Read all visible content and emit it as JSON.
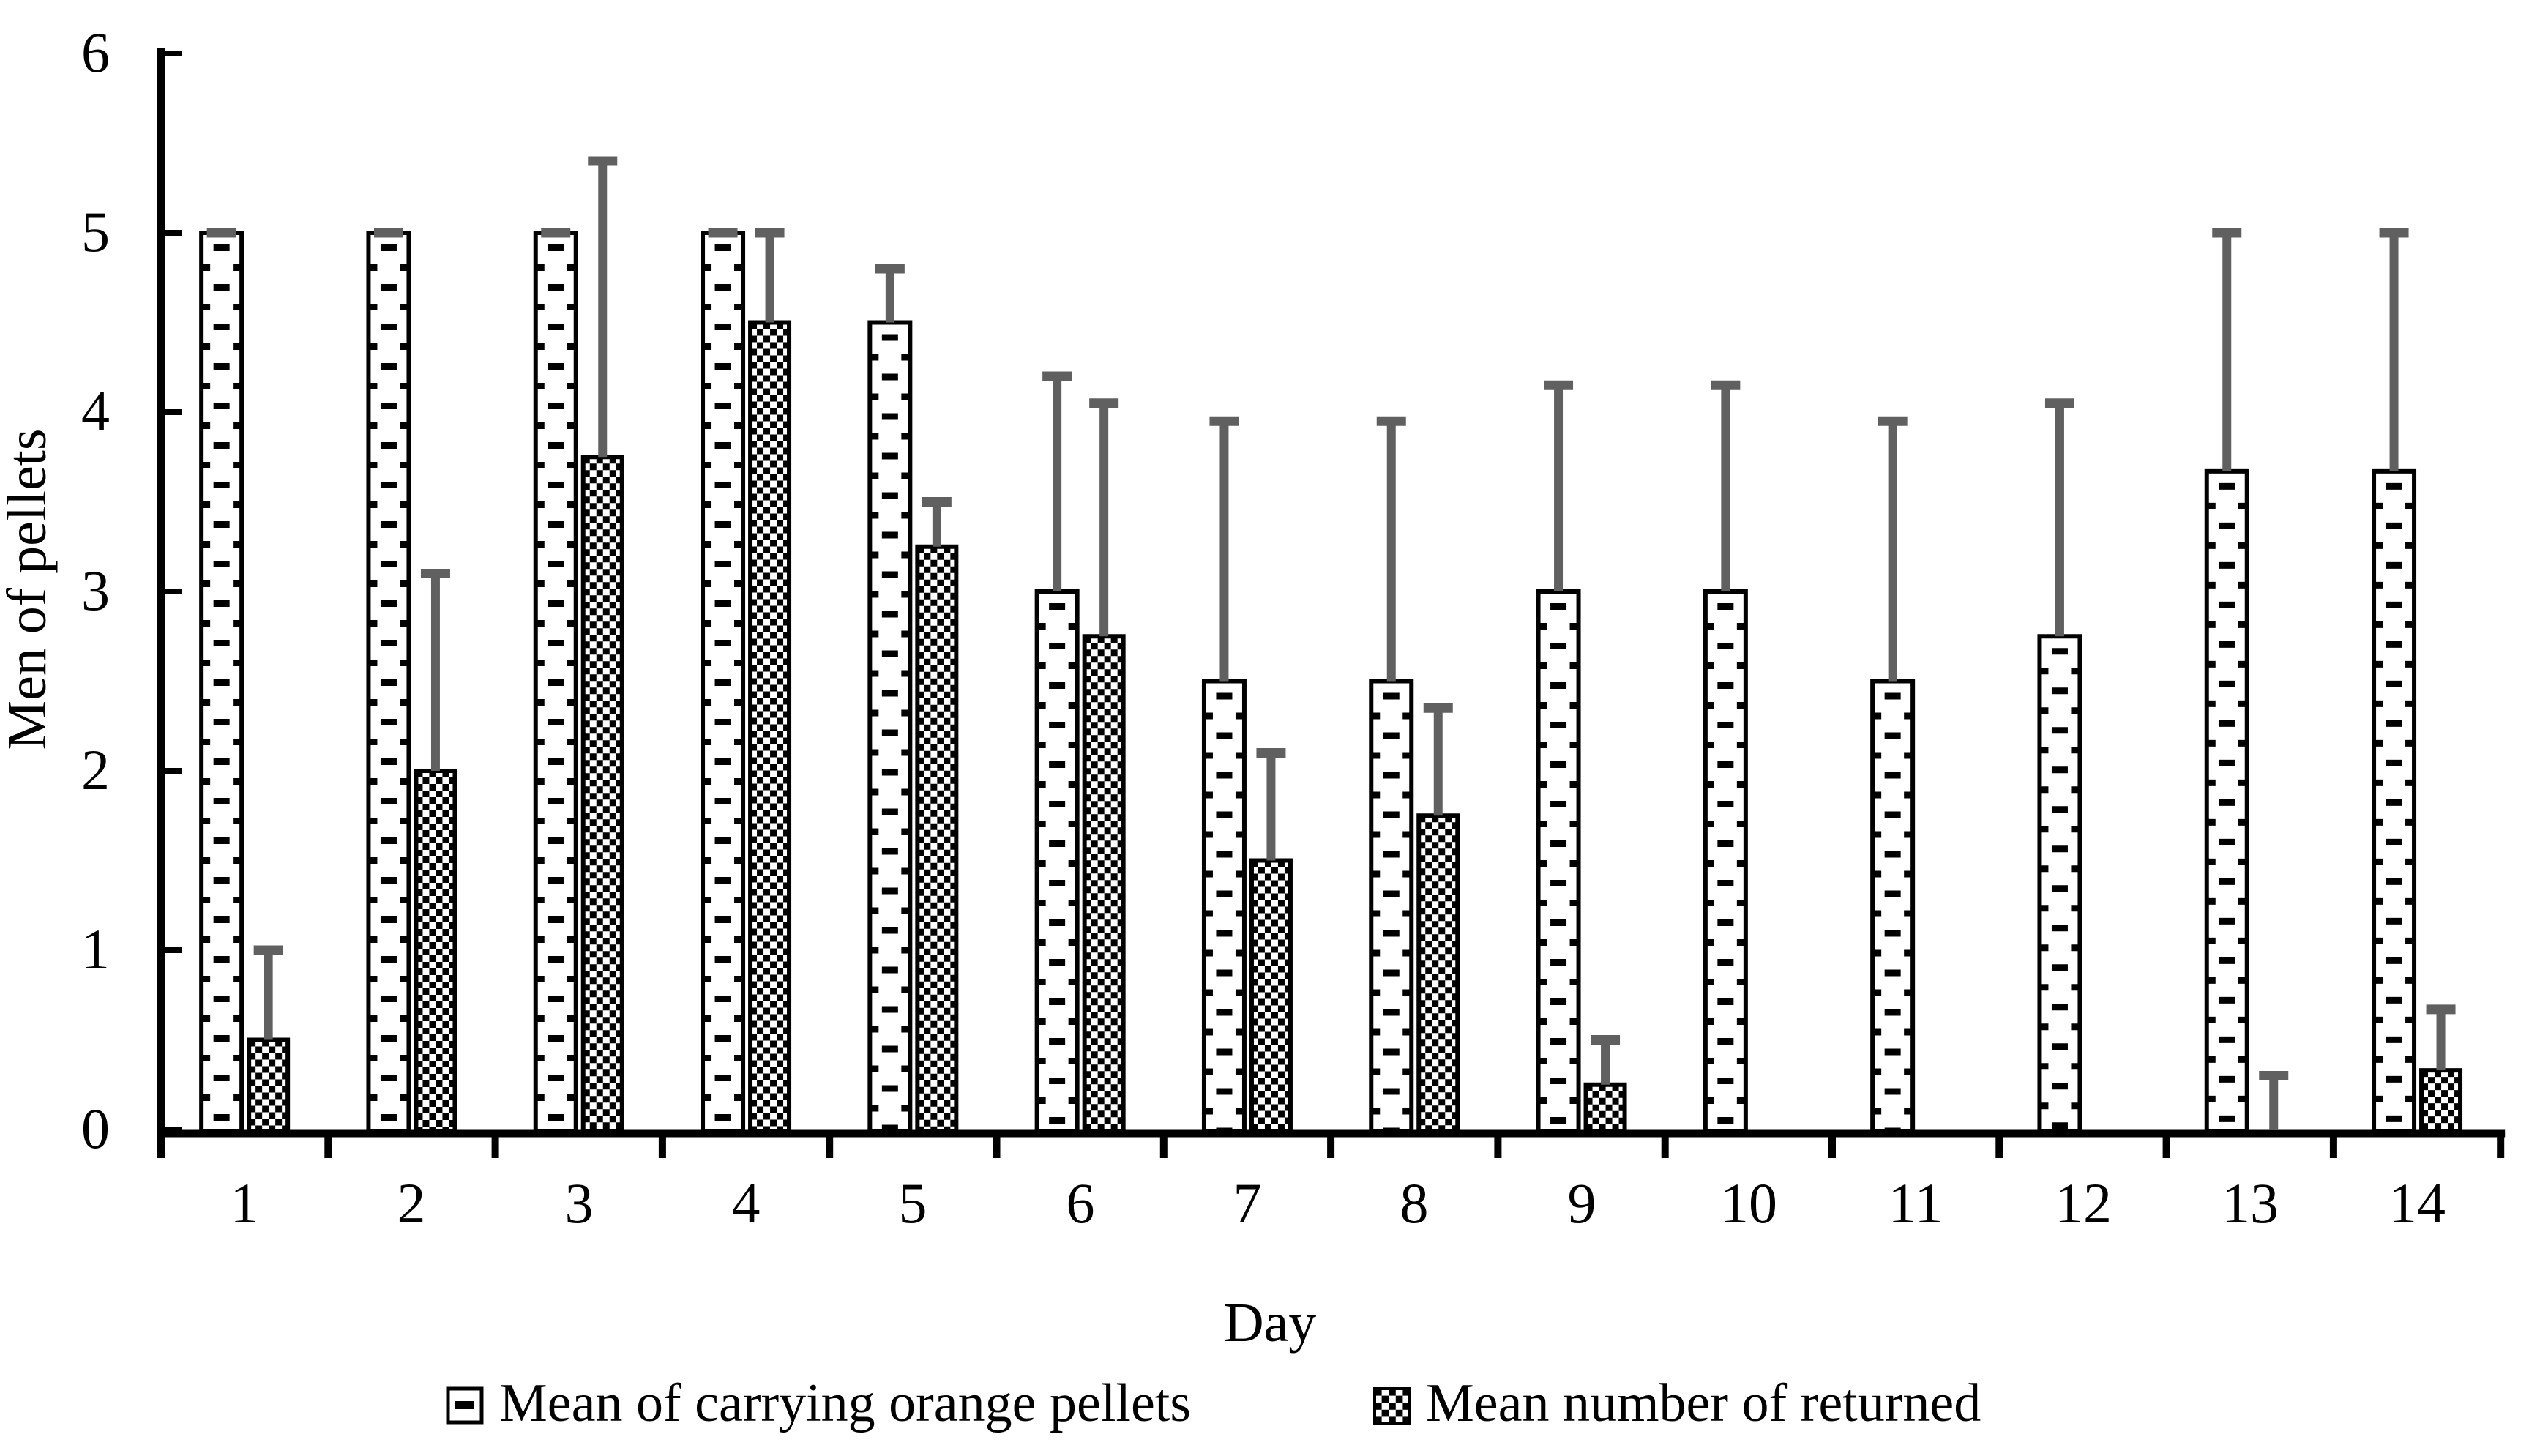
{
  "figure": {
    "background": "#ffffff",
    "text_color": "#000000",
    "bar_outline_color": "#000000",
    "error_bar_color": "#606060"
  },
  "chart_data": {
    "type": "bar",
    "title": "",
    "xlabel": "Day",
    "ylabel": "Men of pellets",
    "categories": [
      "1",
      "2",
      "3",
      "4",
      "5",
      "6",
      "7",
      "8",
      "9",
      "10",
      "11",
      "12",
      "13",
      "14"
    ],
    "ylim": [
      0,
      6
    ],
    "yticks": [
      0,
      1,
      2,
      3,
      4,
      5,
      6
    ],
    "ytick_labels": [
      "0",
      "1",
      "2",
      "3",
      "4",
      "5",
      "6"
    ],
    "grid": false,
    "legend_position": "bottom",
    "series": [
      {
        "name": "Mean of carrying orange pellets",
        "pattern": "horizontal-dash",
        "values": [
          5,
          5,
          5,
          5,
          4.5,
          3,
          2.5,
          2.5,
          3,
          3,
          2.5,
          2.75,
          3.67,
          3.67
        ],
        "error_top": [
          5,
          5,
          5,
          5,
          4.8,
          4.2,
          3.95,
          3.95,
          4.15,
          4.15,
          3.95,
          4.05,
          5,
          5
        ]
      },
      {
        "name": "Mean number of returned",
        "pattern": "checkerboard",
        "values": [
          0.5,
          2,
          3.75,
          4.5,
          3.25,
          2.75,
          1.5,
          1.75,
          0.25,
          0,
          0,
          0,
          0,
          0.33
        ],
        "error_top": [
          1.0,
          3.1,
          5.4,
          5.0,
          3.5,
          4.05,
          2.1,
          2.35,
          0.5,
          null,
          null,
          null,
          0.3,
          0.67
        ]
      }
    ]
  }
}
